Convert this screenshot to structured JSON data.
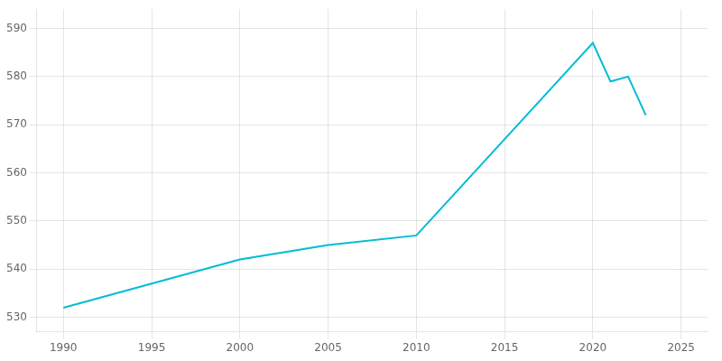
{
  "chart_data": {
    "type": "line",
    "x": [
      1990,
      1995,
      2000,
      2005,
      2010,
      2020,
      2021,
      2022,
      2023
    ],
    "values": [
      532,
      537,
      542,
      545,
      547,
      587,
      579,
      580,
      572
    ],
    "color": "#00BCD4",
    "xlim": [
      1988.5,
      2026.5
    ],
    "ylim": [
      527,
      594
    ],
    "xticks": [
      1990,
      1995,
      2000,
      2005,
      2010,
      2015,
      2020,
      2025
    ],
    "yticks": [
      530,
      540,
      550,
      560,
      570,
      580,
      590
    ],
    "grid": true
  }
}
